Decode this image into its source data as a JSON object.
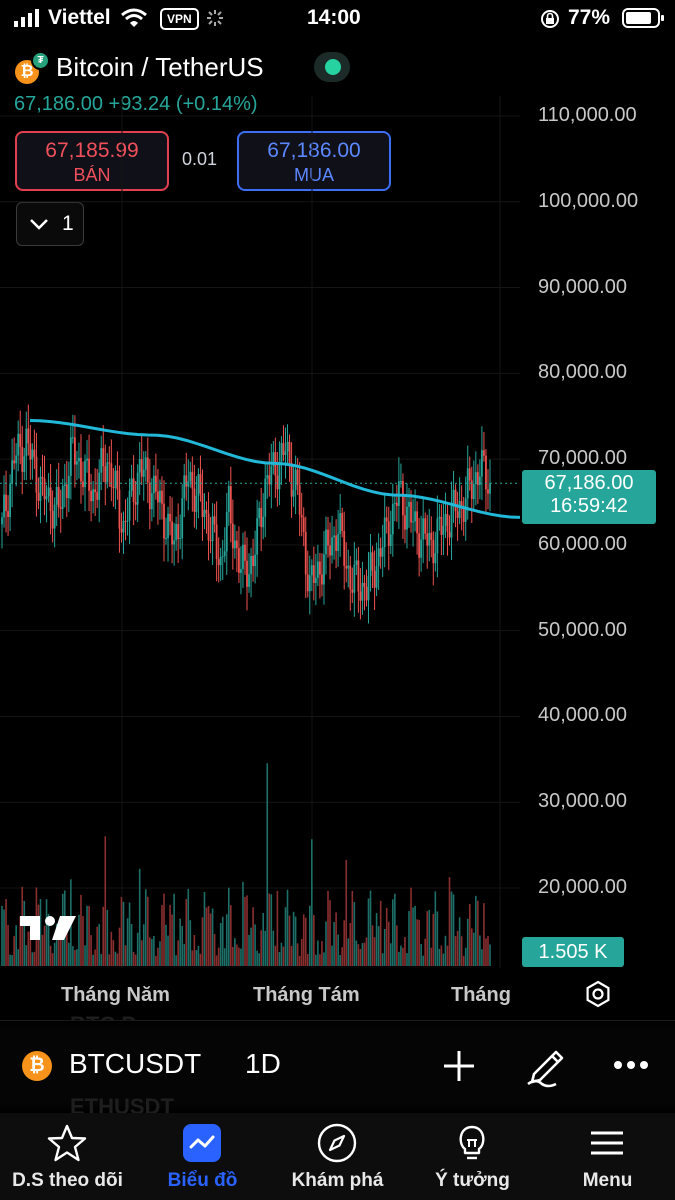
{
  "status_bar": {
    "carrier": "Viettel",
    "vpn": "VPN",
    "time": "14:00",
    "battery": "77%"
  },
  "header": {
    "pair_title": "Bitcoin / TetherUS",
    "last_price": "67,186.00",
    "change": "+93.24",
    "change_pct": "(+0.14%)",
    "sell": {
      "price": "67,185.99",
      "label": "BÁN"
    },
    "buy": {
      "price": "67,186.00",
      "label": "MUA"
    },
    "spread": "0.01",
    "collapse_count": "1"
  },
  "chart": {
    "price_axis": [
      "110,000.00",
      "100,000.00",
      "90,000.00",
      "80,000.00",
      "70,000.00",
      "60,000.00",
      "50,000.00",
      "40,000.00",
      "30,000.00",
      "20,000.00"
    ],
    "current_price": "67,186.00",
    "countdown": "16:59:42",
    "volume_last": "1.505 K",
    "time_axis": [
      "Tháng Năm",
      "Tháng Tám",
      "Tháng"
    ],
    "colors": {
      "up": "#26a69a",
      "down": "#ef5350",
      "ma": "#22b8d8",
      "background": "#000000"
    }
  },
  "chart_data": {
    "type": "candlestick",
    "ylim": [
      20000,
      110000
    ],
    "current_price": 67186,
    "x_labels": [
      "Tháng Năm",
      "Tháng Tám",
      "Tháng"
    ],
    "ma_line_points": [
      [
        0,
        74500
      ],
      [
        0.25,
        72800
      ],
      [
        0.5,
        69500
      ],
      [
        0.75,
        65800
      ],
      [
        1,
        63200
      ]
    ],
    "last_volume": "1.505 K"
  },
  "symbol_bar": {
    "ghost_top": "BTC.D",
    "ghost_bottom": "ETHUSDT",
    "symbol": "BTCUSDT",
    "interval": "1D"
  },
  "tabs": [
    {
      "label": "D.S theo dõi",
      "icon": "star-icon"
    },
    {
      "label": "Biểu đồ",
      "icon": "chart-icon"
    },
    {
      "label": "Khám phá",
      "icon": "compass-icon"
    },
    {
      "label": "Ý tưởng",
      "icon": "lightbulb-icon"
    },
    {
      "label": "Menu",
      "icon": "menu-icon"
    }
  ]
}
